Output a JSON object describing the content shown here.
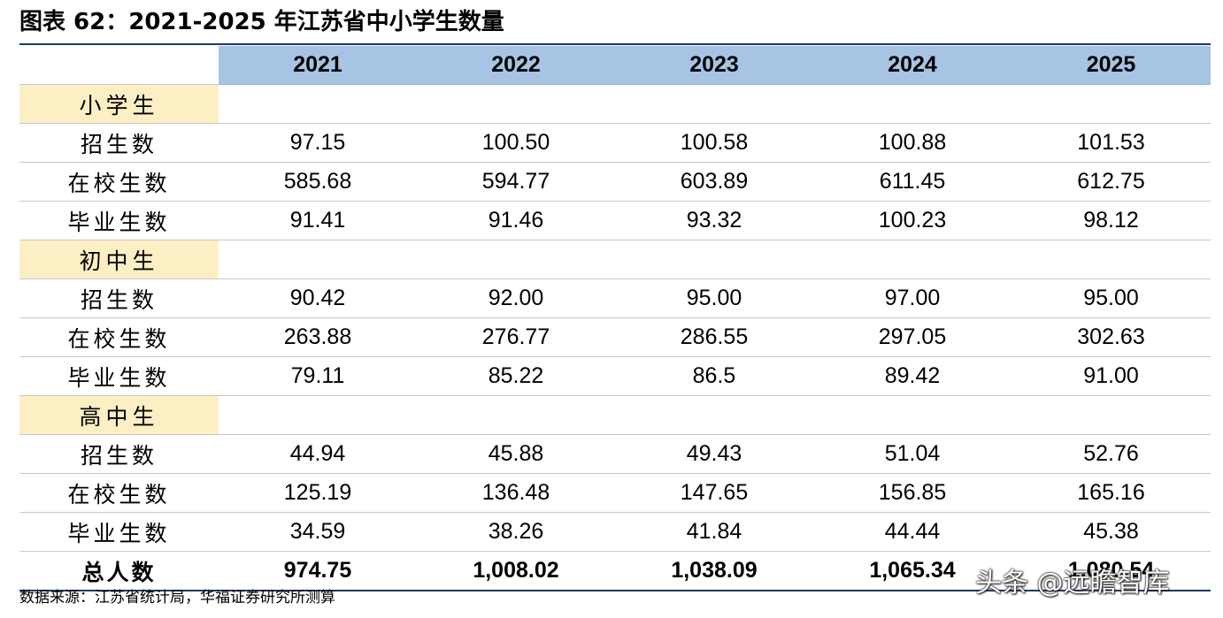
{
  "title": "图表 62：2021-2025 年江苏省中小学生数量",
  "years": [
    "2021",
    "2022",
    "2023",
    "2024",
    "2025"
  ],
  "groups": [
    {
      "label": "小学生",
      "rows": [
        {
          "label": "招生数",
          "values": [
            "97.15",
            "100.50",
            "100.58",
            "100.88",
            "101.53"
          ]
        },
        {
          "label": "在校生数",
          "values": [
            "585.68",
            "594.77",
            "603.89",
            "611.45",
            "612.75"
          ]
        },
        {
          "label": "毕业生数",
          "values": [
            "91.41",
            "91.46",
            "93.32",
            "100.23",
            "98.12"
          ]
        }
      ]
    },
    {
      "label": "初中生",
      "rows": [
        {
          "label": "招生数",
          "values": [
            "90.42",
            "92.00",
            "95.00",
            "97.00",
            "95.00"
          ]
        },
        {
          "label": "在校生数",
          "values": [
            "263.88",
            "276.77",
            "286.55",
            "297.05",
            "302.63"
          ]
        },
        {
          "label": "毕业生数",
          "values": [
            "79.11",
            "85.22",
            "86.5",
            "89.42",
            "91.00"
          ]
        }
      ]
    },
    {
      "label": "高中生",
      "rows": [
        {
          "label": "招生数",
          "values": [
            "44.94",
            "45.88",
            "49.43",
            "51.04",
            "52.76"
          ]
        },
        {
          "label": "在校生数",
          "values": [
            "125.19",
            "136.48",
            "147.65",
            "156.85",
            "165.16"
          ]
        },
        {
          "label": "毕业生数",
          "values": [
            "34.59",
            "38.26",
            "41.84",
            "44.44",
            "45.38"
          ]
        }
      ]
    }
  ],
  "total": {
    "label": "总人数",
    "values": [
      "974.75",
      "1,008.02",
      "1,038.09",
      "1,065.34",
      "1,080.54"
    ]
  },
  "source": "数据来源：江苏省统计局，华福证券研究所测算",
  "watermark": "头条 @远瞻智库",
  "colors": {
    "header_bg": "#a7c4e4",
    "group_bg": "#fdefc4",
    "rule": "#1f3864"
  }
}
